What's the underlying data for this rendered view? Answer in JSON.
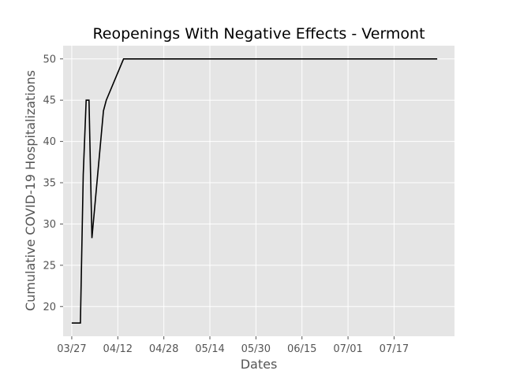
{
  "chart_data": {
    "type": "line",
    "title": "Reopenings With Negative Effects - Vermont",
    "xlabel": "Dates",
    "ylabel": "Cumulative COVID-19 Hospitalizations",
    "x_ticks": [
      "03/27",
      "04/12",
      "04/28",
      "05/14",
      "05/30",
      "06/15",
      "07/01",
      "07/17"
    ],
    "y_ticks": [
      20,
      25,
      30,
      35,
      40,
      45,
      50
    ],
    "xlim": [
      "03/24",
      "08/07"
    ],
    "ylim": [
      16.4,
      51.6
    ],
    "grid": true,
    "series": [
      {
        "color": "#000000",
        "x": [
          "03/27",
          "03/30",
          "03/31",
          "04/01",
          "04/02",
          "04/03",
          "04/07",
          "04/08",
          "04/14",
          "08/01"
        ],
        "y": [
          18,
          18,
          36,
          45,
          45,
          28.3,
          43.7,
          45,
          50,
          50
        ]
      }
    ]
  },
  "colors": {
    "plot_background": "#e5e5e5",
    "grid": "#ffffff",
    "line": "#000000"
  }
}
